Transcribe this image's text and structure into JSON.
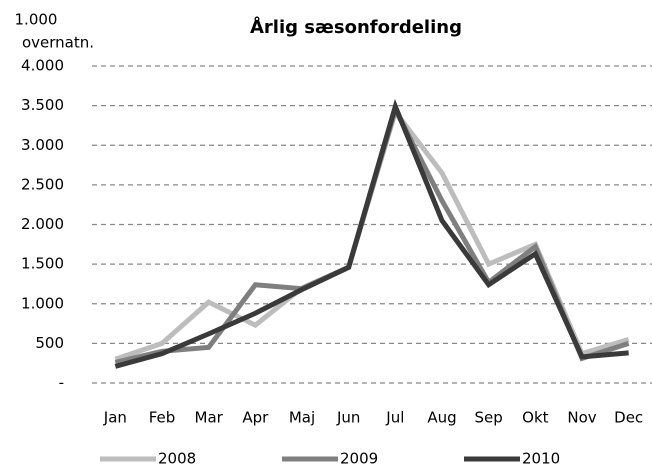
{
  "chart_data": {
    "type": "line",
    "title": "Årlig sæsonfordeling",
    "y_label": [
      "1.000",
      "overnatn."
    ],
    "categories": [
      "Jan",
      "Feb",
      "Mar",
      "Apr",
      "Maj",
      "Jun",
      "Jul",
      "Aug",
      "Sep",
      "Okt",
      "Nov",
      "Dec"
    ],
    "series": [
      {
        "name": "2008",
        "color": "#bdbdbd",
        "values": [
          300,
          500,
          1020,
          730,
          1200,
          1460,
          3420,
          2650,
          1500,
          1750,
          370,
          550
        ]
      },
      {
        "name": "2009",
        "color": "#7f7f7f",
        "values": [
          260,
          400,
          450,
          1240,
          1190,
          1460,
          3450,
          2300,
          1270,
          1720,
          310,
          500
        ]
      },
      {
        "name": "2010",
        "color": "#3a3a3a",
        "values": [
          210,
          370,
          620,
          880,
          1180,
          1460,
          3490,
          2050,
          1240,
          1630,
          330,
          380
        ]
      }
    ],
    "ylim": [
      0,
      4000
    ],
    "yticks": [
      {
        "value": 0,
        "label": "-"
      },
      500,
      {
        "value": 1000,
        "label": "1.000"
      },
      {
        "value": 1500,
        "label": "1.500"
      },
      {
        "value": 2000,
        "label": "2.000"
      },
      {
        "value": 2500,
        "label": "2.500"
      },
      {
        "value": 3000,
        "label": "3.000"
      },
      {
        "value": 3500,
        "label": "3.500"
      },
      {
        "value": 4000,
        "label": "4.000"
      }
    ],
    "grid": true,
    "legend": "bottom"
  }
}
